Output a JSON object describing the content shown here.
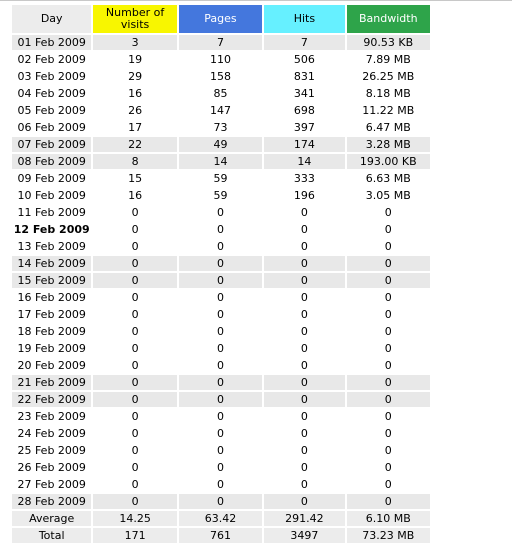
{
  "headers": {
    "day": "Day",
    "visits": "Number of visits",
    "pages": "Pages",
    "hits": "Hits",
    "bandwidth": "Bandwidth"
  },
  "header_colors": {
    "visits": "#f8f600",
    "pages": "#4477dd",
    "hits": "#66f0ff",
    "bandwidth": "#2ea44a"
  },
  "rows": [
    {
      "day": "01 Feb 2009",
      "visits": "3",
      "pages": "7",
      "hits": "7",
      "bandwidth": "90.53 KB",
      "shaded": true
    },
    {
      "day": "02 Feb 2009",
      "visits": "19",
      "pages": "110",
      "hits": "506",
      "bandwidth": "7.89 MB",
      "shaded": false
    },
    {
      "day": "03 Feb 2009",
      "visits": "29",
      "pages": "158",
      "hits": "831",
      "bandwidth": "26.25 MB",
      "shaded": false
    },
    {
      "day": "04 Feb 2009",
      "visits": "16",
      "pages": "85",
      "hits": "341",
      "bandwidth": "8.18 MB",
      "shaded": false
    },
    {
      "day": "05 Feb 2009",
      "visits": "26",
      "pages": "147",
      "hits": "698",
      "bandwidth": "11.22 MB",
      "shaded": false
    },
    {
      "day": "06 Feb 2009",
      "visits": "17",
      "pages": "73",
      "hits": "397",
      "bandwidth": "6.47 MB",
      "shaded": false
    },
    {
      "day": "07 Feb 2009",
      "visits": "22",
      "pages": "49",
      "hits": "174",
      "bandwidth": "3.28 MB",
      "shaded": true
    },
    {
      "day": "08 Feb 2009",
      "visits": "8",
      "pages": "14",
      "hits": "14",
      "bandwidth": "193.00 KB",
      "shaded": true
    },
    {
      "day": "09 Feb 2009",
      "visits": "15",
      "pages": "59",
      "hits": "333",
      "bandwidth": "6.63 MB",
      "shaded": false
    },
    {
      "day": "10 Feb 2009",
      "visits": "16",
      "pages": "59",
      "hits": "196",
      "bandwidth": "3.05 MB",
      "shaded": false
    },
    {
      "day": "11 Feb 2009",
      "visits": "0",
      "pages": "0",
      "hits": "0",
      "bandwidth": "0",
      "shaded": false
    },
    {
      "day": "12 Feb 2009",
      "visits": "0",
      "pages": "0",
      "hits": "0",
      "bandwidth": "0",
      "shaded": false,
      "today": true
    },
    {
      "day": "13 Feb 2009",
      "visits": "0",
      "pages": "0",
      "hits": "0",
      "bandwidth": "0",
      "shaded": false
    },
    {
      "day": "14 Feb 2009",
      "visits": "0",
      "pages": "0",
      "hits": "0",
      "bandwidth": "0",
      "shaded": true
    },
    {
      "day": "15 Feb 2009",
      "visits": "0",
      "pages": "0",
      "hits": "0",
      "bandwidth": "0",
      "shaded": true
    },
    {
      "day": "16 Feb 2009",
      "visits": "0",
      "pages": "0",
      "hits": "0",
      "bandwidth": "0",
      "shaded": false
    },
    {
      "day": "17 Feb 2009",
      "visits": "0",
      "pages": "0",
      "hits": "0",
      "bandwidth": "0",
      "shaded": false
    },
    {
      "day": "18 Feb 2009",
      "visits": "0",
      "pages": "0",
      "hits": "0",
      "bandwidth": "0",
      "shaded": false
    },
    {
      "day": "19 Feb 2009",
      "visits": "0",
      "pages": "0",
      "hits": "0",
      "bandwidth": "0",
      "shaded": false
    },
    {
      "day": "20 Feb 2009",
      "visits": "0",
      "pages": "0",
      "hits": "0",
      "bandwidth": "0",
      "shaded": false
    },
    {
      "day": "21 Feb 2009",
      "visits": "0",
      "pages": "0",
      "hits": "0",
      "bandwidth": "0",
      "shaded": true
    },
    {
      "day": "22 Feb 2009",
      "visits": "0",
      "pages": "0",
      "hits": "0",
      "bandwidth": "0",
      "shaded": true
    },
    {
      "day": "23 Feb 2009",
      "visits": "0",
      "pages": "0",
      "hits": "0",
      "bandwidth": "0",
      "shaded": false
    },
    {
      "day": "24 Feb 2009",
      "visits": "0",
      "pages": "0",
      "hits": "0",
      "bandwidth": "0",
      "shaded": false
    },
    {
      "day": "25 Feb 2009",
      "visits": "0",
      "pages": "0",
      "hits": "0",
      "bandwidth": "0",
      "shaded": false
    },
    {
      "day": "26 Feb 2009",
      "visits": "0",
      "pages": "0",
      "hits": "0",
      "bandwidth": "0",
      "shaded": false
    },
    {
      "day": "27 Feb 2009",
      "visits": "0",
      "pages": "0",
      "hits": "0",
      "bandwidth": "0",
      "shaded": false
    },
    {
      "day": "28 Feb 2009",
      "visits": "0",
      "pages": "0",
      "hits": "0",
      "bandwidth": "0",
      "shaded": true
    }
  ],
  "average": {
    "label": "Average",
    "visits": "14.25",
    "pages": "63.42",
    "hits": "291.42",
    "bandwidth": "6.10 MB"
  },
  "total": {
    "label": "Total",
    "visits": "171",
    "pages": "761",
    "hits": "3497",
    "bandwidth": "73.23 MB"
  }
}
